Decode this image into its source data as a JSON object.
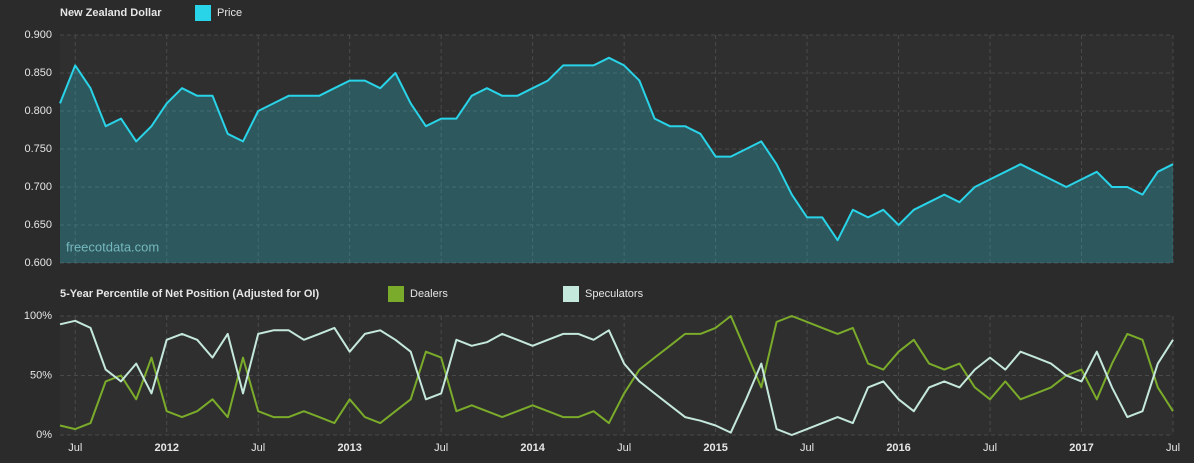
{
  "chart_data": [
    {
      "type": "area",
      "title": "New Zealand Dollar",
      "watermark": "freecotdata.com",
      "grid": true,
      "x": [
        "2011-06",
        "2011-07",
        "2011-08",
        "2011-09",
        "2011-10",
        "2011-11",
        "2011-12",
        "2012-01",
        "2012-02",
        "2012-03",
        "2012-04",
        "2012-05",
        "2012-06",
        "2012-07",
        "2012-08",
        "2012-09",
        "2012-10",
        "2012-11",
        "2012-12",
        "2013-01",
        "2013-02",
        "2013-03",
        "2013-04",
        "2013-05",
        "2013-06",
        "2013-07",
        "2013-08",
        "2013-09",
        "2013-10",
        "2013-11",
        "2013-12",
        "2014-01",
        "2014-02",
        "2014-03",
        "2014-04",
        "2014-05",
        "2014-06",
        "2014-07",
        "2014-08",
        "2014-09",
        "2014-10",
        "2014-11",
        "2014-12",
        "2015-01",
        "2015-02",
        "2015-03",
        "2015-04",
        "2015-05",
        "2015-06",
        "2015-07",
        "2015-08",
        "2015-09",
        "2015-10",
        "2015-11",
        "2015-12",
        "2016-01",
        "2016-02",
        "2016-03",
        "2016-04",
        "2016-05",
        "2016-06",
        "2016-07",
        "2016-08",
        "2016-09",
        "2016-10",
        "2016-11",
        "2016-12",
        "2017-01",
        "2017-02",
        "2017-03",
        "2017-04",
        "2017-05",
        "2017-06",
        "2017-07"
      ],
      "xlim": [
        "2011-06",
        "2017-07"
      ],
      "series": [
        {
          "name": "Price",
          "color": "#29d3e8",
          "values": [
            0.81,
            0.86,
            0.83,
            0.78,
            0.79,
            0.76,
            0.78,
            0.81,
            0.83,
            0.82,
            0.82,
            0.77,
            0.76,
            0.8,
            0.81,
            0.82,
            0.82,
            0.82,
            0.83,
            0.84,
            0.84,
            0.83,
            0.85,
            0.81,
            0.78,
            0.79,
            0.79,
            0.82,
            0.83,
            0.82,
            0.82,
            0.83,
            0.84,
            0.86,
            0.86,
            0.86,
            0.87,
            0.86,
            0.84,
            0.79,
            0.78,
            0.78,
            0.77,
            0.74,
            0.74,
            0.75,
            0.76,
            0.73,
            0.69,
            0.66,
            0.66,
            0.63,
            0.67,
            0.66,
            0.67,
            0.65,
            0.67,
            0.68,
            0.69,
            0.68,
            0.7,
            0.71,
            0.72,
            0.73,
            0.72,
            0.71,
            0.7,
            0.71,
            0.72,
            0.7,
            0.7,
            0.69,
            0.72,
            0.73
          ]
        }
      ],
      "ylim": [
        0.6,
        0.9
      ],
      "yticks": [
        {
          "value": 0.6,
          "label": "0.600"
        },
        {
          "value": 0.65,
          "label": "0.650"
        },
        {
          "value": 0.7,
          "label": "0.700"
        },
        {
          "value": 0.75,
          "label": "0.750"
        },
        {
          "value": 0.8,
          "label": "0.800"
        },
        {
          "value": 0.85,
          "label": "0.850"
        },
        {
          "value": 0.9,
          "label": "0.900"
        }
      ]
    },
    {
      "type": "line",
      "title": "5-Year Percentile of Net Position (Adjusted for OI)",
      "grid": true,
      "x": [
        "2011-06",
        "2011-07",
        "2011-08",
        "2011-09",
        "2011-10",
        "2011-11",
        "2011-12",
        "2012-01",
        "2012-02",
        "2012-03",
        "2012-04",
        "2012-05",
        "2012-06",
        "2012-07",
        "2012-08",
        "2012-09",
        "2012-10",
        "2012-11",
        "2012-12",
        "2013-01",
        "2013-02",
        "2013-03",
        "2013-04",
        "2013-05",
        "2013-06",
        "2013-07",
        "2013-08",
        "2013-09",
        "2013-10",
        "2013-11",
        "2013-12",
        "2014-01",
        "2014-02",
        "2014-03",
        "2014-04",
        "2014-05",
        "2014-06",
        "2014-07",
        "2014-08",
        "2014-09",
        "2014-10",
        "2014-11",
        "2014-12",
        "2015-01",
        "2015-02",
        "2015-03",
        "2015-04",
        "2015-05",
        "2015-06",
        "2015-07",
        "2015-08",
        "2015-09",
        "2015-10",
        "2015-11",
        "2015-12",
        "2016-01",
        "2016-02",
        "2016-03",
        "2016-04",
        "2016-05",
        "2016-06",
        "2016-07",
        "2016-08",
        "2016-09",
        "2016-10",
        "2016-11",
        "2016-12",
        "2017-01",
        "2017-02",
        "2017-03",
        "2017-04",
        "2017-05",
        "2017-06",
        "2017-07"
      ],
      "xlim": [
        "2011-06",
        "2017-07"
      ],
      "xticks": [
        {
          "value": "2011-07",
          "label": "Jul"
        },
        {
          "value": "2012-01",
          "label": "2012"
        },
        {
          "value": "2012-07",
          "label": "Jul"
        },
        {
          "value": "2013-01",
          "label": "2013"
        },
        {
          "value": "2013-07",
          "label": "Jul"
        },
        {
          "value": "2014-01",
          "label": "2014"
        },
        {
          "value": "2014-07",
          "label": "Jul"
        },
        {
          "value": "2015-01",
          "label": "2015"
        },
        {
          "value": "2015-07",
          "label": "Jul"
        },
        {
          "value": "2016-01",
          "label": "2016"
        },
        {
          "value": "2016-07",
          "label": "Jul"
        },
        {
          "value": "2017-01",
          "label": "2017"
        },
        {
          "value": "2017-07",
          "label": "Jul"
        }
      ],
      "series": [
        {
          "name": "Dealers",
          "color": "#7aab2a",
          "values": [
            8,
            5,
            10,
            45,
            50,
            30,
            65,
            20,
            15,
            20,
            30,
            15,
            65,
            20,
            15,
            15,
            20,
            15,
            10,
            30,
            15,
            10,
            20,
            30,
            70,
            65,
            20,
            25,
            20,
            15,
            20,
            25,
            20,
            15,
            15,
            20,
            10,
            35,
            55,
            65,
            75,
            85,
            85,
            90,
            100,
            70,
            40,
            95,
            100,
            95,
            90,
            85,
            90,
            60,
            55,
            70,
            80,
            60,
            55,
            60,
            40,
            30,
            45,
            30,
            35,
            40,
            50,
            55,
            30,
            60,
            85,
            80,
            40,
            20
          ]
        },
        {
          "name": "Speculators",
          "color": "#c5e8dd",
          "values": [
            93,
            96,
            90,
            55,
            45,
            60,
            35,
            80,
            85,
            80,
            65,
            85,
            35,
            85,
            88,
            88,
            80,
            85,
            90,
            70,
            85,
            88,
            80,
            70,
            30,
            35,
            80,
            75,
            78,
            85,
            80,
            75,
            80,
            85,
            85,
            80,
            88,
            60,
            45,
            35,
            25,
            15,
            12,
            8,
            2,
            30,
            60,
            5,
            0,
            5,
            10,
            15,
            10,
            40,
            45,
            30,
            20,
            40,
            45,
            40,
            55,
            65,
            55,
            70,
            65,
            60,
            50,
            45,
            70,
            40,
            15,
            20,
            60,
            80
          ]
        }
      ],
      "ylim": [
        0,
        100
      ],
      "yticks": [
        {
          "value": 0,
          "label": "0%"
        },
        {
          "value": 50,
          "label": "50%"
        },
        {
          "value": 100,
          "label": "100%"
        }
      ]
    }
  ]
}
